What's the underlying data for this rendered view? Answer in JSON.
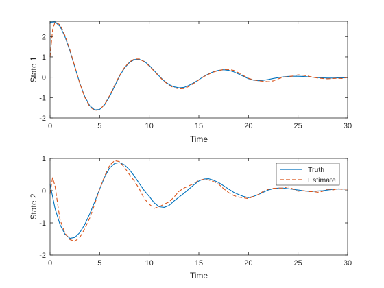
{
  "chart_data": [
    {
      "type": "line",
      "title": "",
      "xlabel": "Time",
      "ylabel": "State 1",
      "xlim": [
        0,
        30
      ],
      "ylim": [
        -2,
        2.75
      ],
      "xticks": [
        0,
        5,
        10,
        15,
        20,
        25,
        30
      ],
      "xtick_labels": [
        "0",
        "5",
        "10",
        "15",
        "20",
        "25",
        "30"
      ],
      "yticks": [
        -2,
        -1,
        0,
        1,
        2
      ],
      "ytick_labels": [
        "-2",
        "-1",
        "0",
        "1",
        "2"
      ],
      "grid": false,
      "legend": null,
      "series": [
        {
          "name": "Truth",
          "style": "solid",
          "color": "#0072BD",
          "x": [
            0,
            0.5,
            1,
            1.5,
            2,
            2.5,
            3,
            3.5,
            4,
            4.5,
            5,
            5.5,
            6,
            6.5,
            7,
            7.5,
            8,
            8.5,
            9,
            9.5,
            10,
            10.5,
            11,
            11.5,
            12,
            12.5,
            13,
            13.5,
            14,
            14.5,
            15,
            15.5,
            16,
            16.5,
            17,
            17.5,
            18,
            18.5,
            19,
            19.5,
            20,
            20.5,
            21,
            21.5,
            22,
            22.5,
            23,
            23.5,
            24,
            24.5,
            25,
            25.5,
            26,
            26.5,
            27,
            27.5,
            28,
            28.5,
            29,
            29.5,
            30
          ],
          "y": [
            2.7,
            2.72,
            2.5,
            2.0,
            1.3,
            0.5,
            -0.3,
            -0.95,
            -1.4,
            -1.6,
            -1.58,
            -1.35,
            -0.95,
            -0.45,
            0.05,
            0.45,
            0.72,
            0.87,
            0.88,
            0.78,
            0.58,
            0.32,
            0.06,
            -0.18,
            -0.36,
            -0.47,
            -0.52,
            -0.5,
            -0.4,
            -0.27,
            -0.12,
            0.04,
            0.17,
            0.28,
            0.34,
            0.37,
            0.34,
            0.27,
            0.16,
            0.04,
            -0.07,
            -0.14,
            -0.17,
            -0.15,
            -0.11,
            -0.06,
            -0.02,
            0.02,
            0.04,
            0.05,
            0.05,
            0.04,
            0.02,
            0.0,
            -0.02,
            -0.03,
            -0.04,
            -0.04,
            -0.03,
            -0.03,
            -0.02
          ]
        },
        {
          "name": "Estimate",
          "style": "dashed",
          "color": "#D95319",
          "x": [
            0,
            0.25,
            0.5,
            1,
            1.5,
            2,
            2.5,
            3,
            3.5,
            4,
            4.5,
            5,
            5.5,
            6,
            6.5,
            7,
            7.5,
            8,
            8.5,
            9,
            9.5,
            10,
            10.5,
            11,
            11.5,
            12,
            12.5,
            13,
            13.5,
            14,
            14.5,
            15,
            15.5,
            16,
            16.5,
            17,
            17.5,
            18,
            18.5,
            19,
            19.5,
            20,
            20.5,
            21,
            21.5,
            22,
            22.5,
            23,
            23.5,
            24,
            24.5,
            25,
            25.5,
            26,
            26.5,
            27,
            27.5,
            28,
            28.5,
            29,
            29.5,
            30
          ],
          "y": [
            1.0,
            2.3,
            2.72,
            2.58,
            2.05,
            1.35,
            0.52,
            -0.3,
            -0.98,
            -1.45,
            -1.63,
            -1.6,
            -1.33,
            -0.9,
            -0.4,
            0.08,
            0.48,
            0.75,
            0.9,
            0.9,
            0.76,
            0.55,
            0.3,
            0.03,
            -0.2,
            -0.4,
            -0.52,
            -0.57,
            -0.56,
            -0.45,
            -0.3,
            -0.13,
            0.03,
            0.15,
            0.26,
            0.33,
            0.38,
            0.38,
            0.34,
            0.22,
            0.08,
            -0.05,
            -0.13,
            -0.17,
            -0.2,
            -0.22,
            -0.18,
            -0.08,
            0.0,
            0.03,
            0.06,
            0.12,
            0.1,
            0.06,
            0.0,
            -0.04,
            -0.06,
            -0.08,
            -0.06,
            -0.05,
            -0.06,
            0.0
          ]
        }
      ]
    },
    {
      "type": "line",
      "title": "",
      "xlabel": "Time",
      "ylabel": "State 2",
      "xlim": [
        0,
        30
      ],
      "ylim": [
        -2,
        1
      ],
      "xticks": [
        0,
        5,
        10,
        15,
        20,
        25,
        30
      ],
      "xtick_labels": [
        "0",
        "5",
        "10",
        "15",
        "20",
        "25",
        "30"
      ],
      "yticks": [
        -2,
        -1,
        0,
        1
      ],
      "ytick_labels": [
        "-2",
        "-1",
        "0",
        "1"
      ],
      "grid": false,
      "legend": "top-right",
      "series": [
        {
          "name": "Truth",
          "style": "solid",
          "color": "#0072BD",
          "x": [
            0,
            0.5,
            1,
            1.5,
            2,
            2.5,
            3,
            3.5,
            4,
            4.5,
            5,
            5.5,
            6,
            6.5,
            7,
            7.5,
            8,
            8.5,
            9,
            9.5,
            10,
            10.5,
            11,
            11.5,
            12,
            12.5,
            13,
            13.5,
            14,
            14.5,
            15,
            15.5,
            16,
            16.5,
            17,
            17.5,
            18,
            18.5,
            19,
            19.5,
            20,
            20.5,
            21,
            21.5,
            22,
            22.5,
            23,
            23.5,
            24,
            24.5,
            25,
            25.5,
            26,
            26.5,
            27,
            27.5,
            28,
            28.5,
            29,
            29.5,
            30
          ],
          "y": [
            0.2,
            -0.55,
            -1.05,
            -1.35,
            -1.48,
            -1.45,
            -1.3,
            -1.05,
            -0.72,
            -0.35,
            0.05,
            0.42,
            0.7,
            0.84,
            0.87,
            0.8,
            0.65,
            0.45,
            0.22,
            0.0,
            -0.18,
            -0.38,
            -0.5,
            -0.52,
            -0.46,
            -0.32,
            -0.2,
            -0.08,
            0.05,
            0.18,
            0.3,
            0.36,
            0.37,
            0.32,
            0.25,
            0.15,
            0.05,
            -0.05,
            -0.12,
            -0.18,
            -0.22,
            -0.18,
            -0.12,
            -0.05,
            0.02,
            0.06,
            0.08,
            0.08,
            0.06,
            0.04,
            0.02,
            0.0,
            -0.02,
            -0.02,
            -0.01,
            0.0,
            0.02,
            0.04,
            0.05,
            0.05,
            0.05
          ]
        },
        {
          "name": "Estimate",
          "style": "dashed",
          "color": "#D95319",
          "x": [
            0,
            0.25,
            0.5,
            1,
            1.5,
            2,
            2.5,
            3,
            3.5,
            4,
            4.5,
            5,
            5.5,
            6,
            6.5,
            7,
            7.5,
            8,
            8.5,
            9,
            9.5,
            10,
            10.5,
            11,
            11.5,
            12,
            12.5,
            13,
            13.5,
            14,
            14.5,
            15,
            15.5,
            16,
            16.5,
            17,
            17.5,
            18,
            18.5,
            19,
            19.5,
            20,
            20.5,
            21,
            21.5,
            22,
            22.5,
            23,
            23.5,
            24,
            24.5,
            25,
            25.5,
            26,
            26.5,
            27,
            27.5,
            28,
            28.5,
            29,
            29.5,
            30
          ],
          "y": [
            -0.1,
            0.4,
            0.15,
            -0.9,
            -1.32,
            -1.52,
            -1.57,
            -1.45,
            -1.18,
            -0.85,
            -0.42,
            0.05,
            0.45,
            0.78,
            0.93,
            0.9,
            0.72,
            0.5,
            0.3,
            0.05,
            -0.25,
            -0.42,
            -0.55,
            -0.5,
            -0.42,
            -0.35,
            -0.2,
            -0.02,
            0.08,
            0.15,
            0.22,
            0.32,
            0.35,
            0.33,
            0.28,
            0.2,
            0.06,
            -0.06,
            -0.15,
            -0.2,
            -0.22,
            -0.25,
            -0.18,
            -0.12,
            -0.02,
            0.04,
            0.07,
            0.08,
            0.08,
            0.12,
            0.05,
            -0.02,
            0.0,
            -0.03,
            -0.03,
            -0.05,
            -0.02,
            0.05,
            0.02,
            0.06,
            0.04,
            0.05
          ]
        }
      ]
    }
  ]
}
